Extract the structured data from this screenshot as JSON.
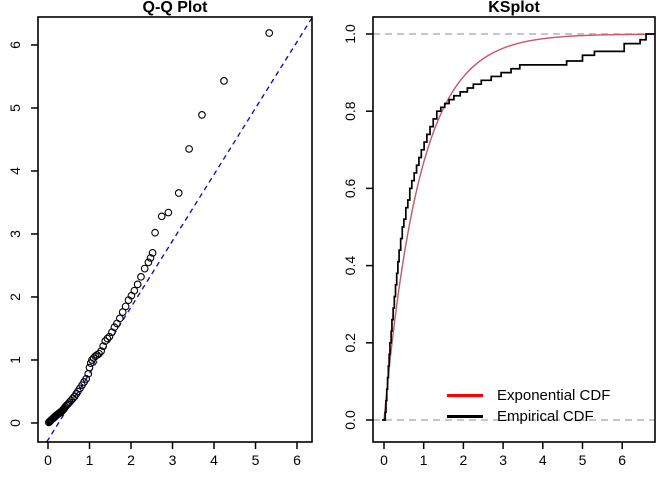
{
  "page": {
    "background": "#ffffff"
  },
  "chart_data": [
    {
      "id": "qq",
      "type": "scatter",
      "title": "Q-Q Plot",
      "xlabel": "",
      "ylabel": "",
      "x_ticks": {
        "values": [
          0,
          1,
          2,
          3,
          4,
          5,
          6
        ],
        "labels": [
          "0",
          "1",
          "2",
          "3",
          "4",
          "5",
          "6"
        ]
      },
      "y_ticks": {
        "values": [
          0,
          1,
          2,
          3,
          4,
          5,
          6
        ],
        "labels": [
          "0",
          "1",
          "2",
          "3",
          "4",
          "5",
          "6"
        ]
      },
      "x_range": [
        -0.241,
        6.361
      ],
      "y_range": [
        -0.302,
        6.444
      ],
      "grid": false,
      "point_color": "#000000",
      "points": [
        [
          0.02,
          0.01
        ],
        [
          0.04,
          0.02
        ],
        [
          0.05,
          0.03
        ],
        [
          0.07,
          0.04
        ],
        [
          0.08,
          0.05
        ],
        [
          0.1,
          0.06
        ],
        [
          0.12,
          0.07
        ],
        [
          0.13,
          0.08
        ],
        [
          0.15,
          0.09
        ],
        [
          0.17,
          0.1
        ],
        [
          0.18,
          0.11
        ],
        [
          0.2,
          0.12
        ],
        [
          0.22,
          0.13
        ],
        [
          0.24,
          0.14
        ],
        [
          0.26,
          0.15
        ],
        [
          0.28,
          0.16
        ],
        [
          0.3,
          0.17
        ],
        [
          0.32,
          0.18
        ],
        [
          0.34,
          0.19
        ],
        [
          0.36,
          0.21
        ],
        [
          0.38,
          0.22
        ],
        [
          0.4,
          0.24
        ],
        [
          0.42,
          0.26
        ],
        [
          0.45,
          0.28
        ],
        [
          0.48,
          0.3
        ],
        [
          0.52,
          0.33
        ],
        [
          0.56,
          0.36
        ],
        [
          0.6,
          0.39
        ],
        [
          0.64,
          0.42
        ],
        [
          0.68,
          0.46
        ],
        [
          0.72,
          0.5
        ],
        [
          0.77,
          0.55
        ],
        [
          0.82,
          0.6
        ],
        [
          0.87,
          0.65
        ],
        [
          0.92,
          0.7
        ],
        [
          0.97,
          0.78
        ],
        [
          1.0,
          0.88
        ],
        [
          1.03,
          0.95
        ],
        [
          1.06,
          1.0
        ],
        [
          1.1,
          1.03
        ],
        [
          1.14,
          1.06
        ],
        [
          1.18,
          1.08
        ],
        [
          1.23,
          1.1
        ],
        [
          1.28,
          1.14
        ],
        [
          1.33,
          1.22
        ],
        [
          1.38,
          1.3
        ],
        [
          1.43,
          1.34
        ],
        [
          1.48,
          1.37
        ],
        [
          1.54,
          1.44
        ],
        [
          1.6,
          1.52
        ],
        [
          1.66,
          1.58
        ],
        [
          1.73,
          1.66
        ],
        [
          1.8,
          1.76
        ],
        [
          1.87,
          1.85
        ],
        [
          1.94,
          1.95
        ],
        [
          2.01,
          2.02
        ],
        [
          2.08,
          2.1
        ],
        [
          2.16,
          2.2
        ],
        [
          2.24,
          2.32
        ],
        [
          2.33,
          2.45
        ],
        [
          2.42,
          2.55
        ],
        [
          2.47,
          2.62
        ],
        [
          2.52,
          2.7
        ],
        [
          2.58,
          3.02
        ],
        [
          2.74,
          3.28
        ],
        [
          2.9,
          3.34
        ],
        [
          3.15,
          3.65
        ],
        [
          3.4,
          4.35
        ],
        [
          3.71,
          4.89
        ],
        [
          4.24,
          5.43
        ],
        [
          5.33,
          6.19
        ]
      ],
      "ref_line": {
        "x1": -0.03,
        "y1": -0.3,
        "x2": 6.36,
        "y2": 6.43,
        "color": "#0000EE",
        "style": "dashed"
      }
    },
    {
      "id": "ks",
      "type": "line",
      "title": "KSplot",
      "xlabel": "",
      "ylabel": "",
      "x_ticks": {
        "values": [
          0,
          1,
          2,
          3,
          4,
          5,
          6
        ],
        "labels": [
          "0",
          "1",
          "2",
          "3",
          "4",
          "5",
          "6"
        ]
      },
      "y_ticks": {
        "values": [
          0,
          0.2,
          0.4,
          0.6,
          0.8,
          1.0
        ],
        "labels": [
          "0.0",
          "0.2",
          "0.4",
          "0.6",
          "0.8",
          "1.0"
        ]
      },
      "x_range": [
        -0.277,
        6.826
      ],
      "y_range": [
        -0.057,
        1.044
      ],
      "grid": false,
      "dashed_hlines": {
        "values": [
          0,
          1
        ],
        "color": "#B3B3B3"
      },
      "exponential": {
        "rate": 1.1,
        "x_start": 0,
        "x_end": 6.826,
        "curve_color": "#CC5566"
      },
      "empirical_color": "#000000",
      "empirical_steps": [
        [
          0.03,
          0.02
        ],
        [
          0.05,
          0.05
        ],
        [
          0.07,
          0.08
        ],
        [
          0.09,
          0.11
        ],
        [
          0.11,
          0.14
        ],
        [
          0.13,
          0.17
        ],
        [
          0.15,
          0.2
        ],
        [
          0.18,
          0.23
        ],
        [
          0.2,
          0.26
        ],
        [
          0.23,
          0.29
        ],
        [
          0.26,
          0.32
        ],
        [
          0.29,
          0.35
        ],
        [
          0.32,
          0.38
        ],
        [
          0.35,
          0.41
        ],
        [
          0.38,
          0.44
        ],
        [
          0.42,
          0.47
        ],
        [
          0.46,
          0.5
        ],
        [
          0.5,
          0.52
        ],
        [
          0.55,
          0.55
        ],
        [
          0.6,
          0.57
        ],
        [
          0.65,
          0.6
        ],
        [
          0.7,
          0.62
        ],
        [
          0.76,
          0.64
        ],
        [
          0.82,
          0.66
        ],
        [
          0.88,
          0.68
        ],
        [
          0.94,
          0.7
        ],
        [
          1.01,
          0.72
        ],
        [
          1.08,
          0.74
        ],
        [
          1.16,
          0.76
        ],
        [
          1.24,
          0.78
        ],
        [
          1.33,
          0.8
        ],
        [
          1.43,
          0.81
        ],
        [
          1.53,
          0.82
        ],
        [
          1.64,
          0.83
        ],
        [
          1.76,
          0.84
        ],
        [
          1.92,
          0.85
        ],
        [
          2.1,
          0.86
        ],
        [
          2.25,
          0.87
        ],
        [
          2.45,
          0.88
        ],
        [
          2.7,
          0.89
        ],
        [
          2.95,
          0.9
        ],
        [
          3.2,
          0.91
        ],
        [
          3.42,
          0.92
        ],
        [
          4.6,
          0.93
        ],
        [
          5.0,
          0.945
        ],
        [
          5.3,
          0.955
        ],
        [
          6.05,
          0.975
        ],
        [
          6.45,
          0.985
        ],
        [
          6.6,
          1.0
        ]
      ],
      "legend": [
        {
          "label": "Exponential CDF",
          "color": "#FF0000"
        },
        {
          "label": "Empirical CDF",
          "color": "#000000"
        }
      ],
      "legend_position": "bottom-right"
    }
  ]
}
